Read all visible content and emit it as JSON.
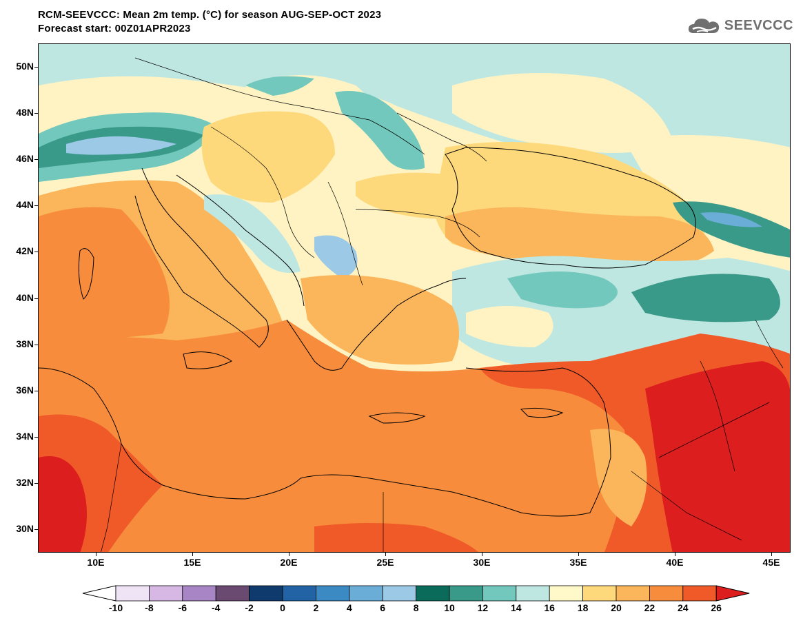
{
  "title": {
    "line1": "RCM-SEEVCCC: Mean 2m temp. (°C) for season AUG-SEP-OCT 2023",
    "line2": "Forecast start: 00Z01APR2023"
  },
  "logo": {
    "text": "SEEVCCC",
    "icon": "cloud-icon",
    "color": "#6f6f6f"
  },
  "map": {
    "lon_range": [
      7,
      46
    ],
    "lat_range": [
      29,
      51
    ],
    "lat_ticks": [
      {
        "value": 50,
        "label": "50N"
      },
      {
        "value": 48,
        "label": "48N"
      },
      {
        "value": 46,
        "label": "46N"
      },
      {
        "value": 44,
        "label": "44N"
      },
      {
        "value": 42,
        "label": "42N"
      },
      {
        "value": 40,
        "label": "40N"
      },
      {
        "value": 38,
        "label": "38N"
      },
      {
        "value": 36,
        "label": "36N"
      },
      {
        "value": 34,
        "label": "34N"
      },
      {
        "value": 32,
        "label": "32N"
      },
      {
        "value": 30,
        "label": "30N"
      }
    ],
    "lon_ticks": [
      {
        "value": 10,
        "label": "10E"
      },
      {
        "value": 15,
        "label": "15E"
      },
      {
        "value": 20,
        "label": "20E"
      },
      {
        "value": 25,
        "label": "25E"
      },
      {
        "value": 30,
        "label": "30E"
      },
      {
        "value": 35,
        "label": "35E"
      },
      {
        "value": 40,
        "label": "40E"
      },
      {
        "value": 45,
        "label": "45E"
      }
    ]
  },
  "colorbar": {
    "labels": [
      "-10",
      "-8",
      "-6",
      "-4",
      "-2",
      "0",
      "2",
      "4",
      "6",
      "8",
      "10",
      "12",
      "14",
      "16",
      "18",
      "20",
      "22",
      "24",
      "26"
    ],
    "under_color": "#ffffff",
    "over_color": "#dc1e1e",
    "colors": [
      "#efe4f6",
      "#d7b7e4",
      "#a885c4",
      "#6b4a72",
      "#0f3a6e",
      "#2163a4",
      "#3c8ac4",
      "#6aaed8",
      "#9cc9e6",
      "#0b6b5a",
      "#3a9a8a",
      "#72c8bc",
      "#bfe7e2",
      "#fff8c8",
      "#fdd97c",
      "#fbb55a",
      "#f78d3c",
      "#f05a28"
    ]
  }
}
